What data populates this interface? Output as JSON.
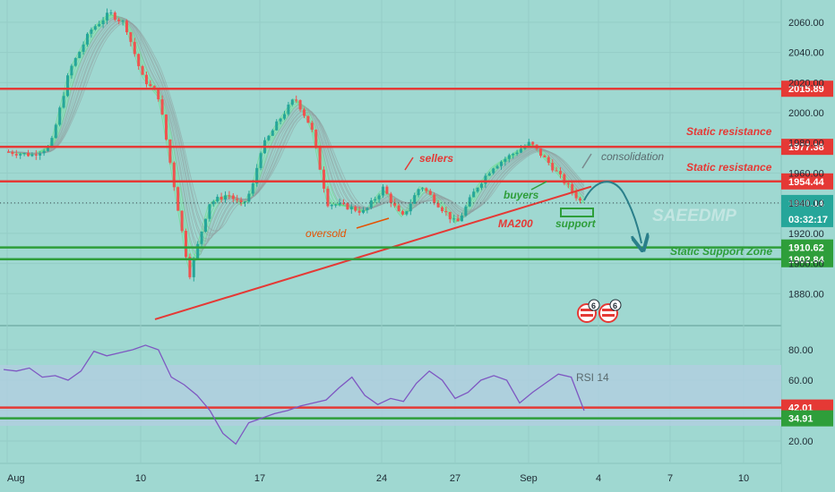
{
  "chart_data": [
    {
      "type": "candlestick",
      "title": "",
      "ylim": [
        1860,
        2070
      ],
      "yticks": [
        "2060.00",
        "2040.00",
        "2020.00",
        "2000.00",
        "1980.00",
        "1960.00",
        "1940.00",
        "1920.00",
        "1900.00",
        "1880.00"
      ],
      "xticks": [
        "Aug",
        "10",
        "17",
        "24",
        "27",
        "Sep",
        "4",
        "7",
        "10"
      ],
      "price_levels": [
        {
          "name": "Static resistance",
          "value": 2015.89,
          "label": "2015.89",
          "color": "#e53935"
        },
        {
          "name": "Static resistance",
          "value": 1977.38,
          "label": "1977.38",
          "color": "#e53935"
        },
        {
          "name": "Static resistance",
          "value": 1954.44,
          "label": "1954.44",
          "color": "#e53935"
        },
        {
          "name": "Static Support Zone",
          "value": 1910.62,
          "label": "1910.62",
          "color": "#2e9e3a"
        },
        {
          "name": "Static Support Zone",
          "value": 1902.84,
          "label": "1902.84",
          "color": "#2e9e3a"
        }
      ],
      "current_price": {
        "value": 1940.14,
        "label": "1940.14",
        "countdown": "03:32:17"
      },
      "close_path": [
        [
          "Aug 3",
          1974
        ],
        [
          "Aug 4",
          1972
        ],
        [
          "Aug 5",
          1978
        ],
        [
          "Aug 6",
          2028
        ],
        [
          "Aug 7",
          2055
        ],
        [
          "Aug 8",
          2066
        ],
        [
          "Aug 9",
          2059
        ],
        [
          "Aug 10",
          2024
        ],
        [
          "Aug 11",
          2010
        ],
        [
          "Aug 12",
          1892
        ],
        [
          "Aug 13",
          1940
        ],
        [
          "Aug 14",
          1946
        ],
        [
          "Aug 15",
          1938
        ],
        [
          "Aug 16",
          1950
        ],
        [
          "Aug 17",
          1976
        ],
        [
          "Aug 18",
          1996
        ],
        [
          "Aug 19",
          2010
        ],
        [
          "Aug 20",
          1990
        ],
        [
          "Aug 21",
          1940
        ],
        [
          "Aug 22",
          1938
        ],
        [
          "Aug 23",
          1934
        ],
        [
          "Aug 24",
          1950
        ],
        [
          "Aug 25",
          1930
        ],
        [
          "Aug 26",
          1952
        ],
        [
          "Aug 27",
          1926
        ],
        [
          "Aug 28",
          1950
        ],
        [
          "Aug 31",
          1964
        ],
        [
          "Sep 1",
          1980
        ],
        [
          "Sep 2",
          1966
        ],
        [
          "Sep 3",
          1940
        ]
      ],
      "ma200": {
        "name": "MA200",
        "from": [
          "Aug 10",
          1863
        ],
        "to": [
          "Sep 3",
          1951
        ]
      },
      "projection": {
        "from": 1946,
        "peak": 1958,
        "to": 1910
      },
      "annotations": [
        "Static resistance",
        "Static resistance",
        "sellers",
        "consolidation",
        "buyers",
        "MA200",
        "oversold",
        "support",
        "Static Support Zone"
      ],
      "watermark": "SAEEDMP",
      "event_badges": [
        "6",
        "6"
      ]
    },
    {
      "type": "line",
      "title": "RSI 14",
      "ylim": [
        10,
        90
      ],
      "yticks": [
        "80.00",
        "60.00",
        "40.00",
        "20.00"
      ],
      "band": [
        30,
        70
      ],
      "levels": [
        {
          "value": 42.01,
          "label": "42.01",
          "color": "#e53935"
        },
        {
          "value": 34.91,
          "label": "34.91",
          "color": "#2e9e3a"
        }
      ],
      "series": [
        {
          "values": [
            67,
            66,
            68,
            62,
            63,
            60,
            66,
            79,
            76,
            78,
            80,
            83,
            80,
            62,
            57,
            50,
            40,
            25,
            18,
            32,
            35,
            38,
            40,
            43,
            45,
            47,
            55,
            62,
            50,
            44,
            48,
            46,
            58,
            66,
            60,
            48,
            52,
            60,
            63,
            60,
            45,
            52,
            58,
            64,
            62,
            40
          ]
        }
      ]
    }
  ],
  "colors": {
    "background": "#9fd8d1",
    "up": "#26a69a",
    "down": "#ef5350",
    "resistance": "#e53935",
    "support": "#2e9e3a",
    "rsi_line": "#7e57c2",
    "rsi_band": "#b3cde0"
  }
}
